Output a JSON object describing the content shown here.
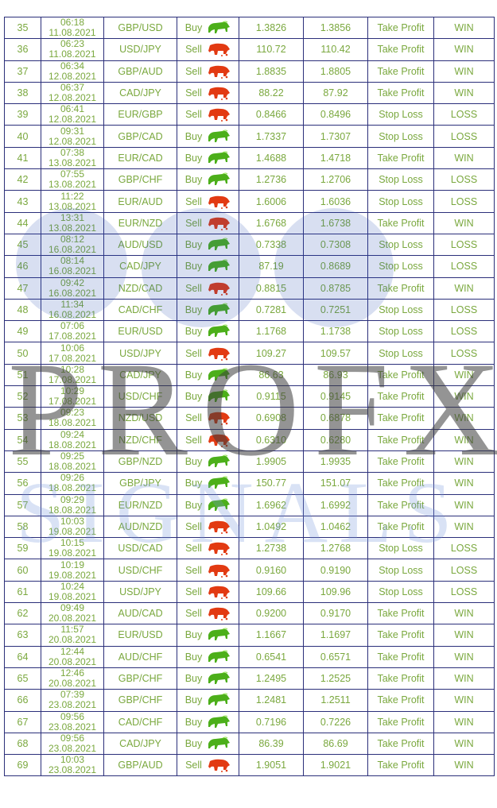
{
  "colors": {
    "text": "#7aa83e",
    "border": "#2b2f7a",
    "buy_icon": "#4caf1a",
    "sell_icon": "#e23a12"
  },
  "watermark": {
    "line1": "PROFX",
    "line2": "SIGNALS"
  },
  "rows": [
    {
      "n": "35",
      "time": "06:18",
      "date": "11.08.2021",
      "pair": "GBP/USD",
      "dir": "Buy",
      "icon": "bull-icon",
      "open": "1.3826",
      "close": "1.3856",
      "exit": "Take Profit",
      "result": "WIN"
    },
    {
      "n": "36",
      "time": "06:23",
      "date": "11.08.2021",
      "pair": "USD/JPY",
      "dir": "Sell",
      "icon": "bear-icon",
      "open": "110.72",
      "close": "110.42",
      "exit": "Take Profit",
      "result": "WIN"
    },
    {
      "n": "37",
      "time": "06:34",
      "date": "12.08.2021",
      "pair": "GBP/AUD",
      "dir": "Sell",
      "icon": "bear-icon",
      "open": "1.8835",
      "close": "1.8805",
      "exit": "Take Profit",
      "result": "WIN"
    },
    {
      "n": "38",
      "time": "06:37",
      "date": "12.08.2021",
      "pair": "CAD/JPY",
      "dir": "Sell",
      "icon": "bear-icon",
      "open": "88.22",
      "close": "87.92",
      "exit": "Take Profit",
      "result": "WIN"
    },
    {
      "n": "39",
      "time": "06:41",
      "date": "12.08.2021",
      "pair": "EUR/GBP",
      "dir": "Sell",
      "icon": "bear-icon",
      "open": "0.8466",
      "close": "0.8496",
      "exit": "Stop Loss",
      "result": "LOSS"
    },
    {
      "n": "40",
      "time": "09:31",
      "date": "12.08.2021",
      "pair": "GBP/CAD",
      "dir": "Buy",
      "icon": "bull-icon",
      "open": "1.7337",
      "close": "1.7307",
      "exit": "Stop Loss",
      "result": "LOSS"
    },
    {
      "n": "41",
      "time": "07:38",
      "date": "13.08.2021",
      "pair": "EUR/CAD",
      "dir": "Buy",
      "icon": "bull-icon",
      "open": "1.4688",
      "close": "1.4718",
      "exit": "Take Profit",
      "result": "WIN"
    },
    {
      "n": "42",
      "time": "07:55",
      "date": "13.08.2021",
      "pair": "GBP/CHF",
      "dir": "Buy",
      "icon": "bull-icon",
      "open": "1.2736",
      "close": "1.2706",
      "exit": "Stop Loss",
      "result": "LOSS"
    },
    {
      "n": "43",
      "time": "11:22",
      "date": "13.08.2021",
      "pair": "EUR/AUD",
      "dir": "Sell",
      "icon": "bear-icon",
      "open": "1.6006",
      "close": "1.6036",
      "exit": "Stop Loss",
      "result": "LOSS"
    },
    {
      "n": "44",
      "time": "13:31",
      "date": "13.08.2021",
      "pair": "EUR/NZD",
      "dir": "Sell",
      "icon": "bear-icon",
      "open": "1.6768",
      "close": "1.6738",
      "exit": "Take Profit",
      "result": "WIN"
    },
    {
      "n": "45",
      "time": "08:12",
      "date": "16.08.2021",
      "pair": "AUD/USD",
      "dir": "Buy",
      "icon": "bull-icon",
      "open": "0.7338",
      "close": "0.7308",
      "exit": "Stop Loss",
      "result": "LOSS"
    },
    {
      "n": "46",
      "time": "08:14",
      "date": "16.08.2021",
      "pair": "CAD/JPY",
      "dir": "Buy",
      "icon": "bull-icon",
      "open": "87.19",
      "close": "0.8689",
      "exit": "Stop Loss",
      "result": "LOSS"
    },
    {
      "n": "47",
      "time": "09:42",
      "date": "16.08.2021",
      "pair": "NZD/CAD",
      "dir": "Sell",
      "icon": "bear-icon",
      "open": "0.8815",
      "close": "0.8785",
      "exit": "Take Profit",
      "result": "WIN"
    },
    {
      "n": "48",
      "time": "11:34",
      "date": "16.08.2021",
      "pair": "CAD/CHF",
      "dir": "Buy",
      "icon": "bull-icon",
      "open": "0.7281",
      "close": "0.7251",
      "exit": "Stop Loss",
      "result": "LOSS"
    },
    {
      "n": "49",
      "time": "07:06",
      "date": "17.08.2021",
      "pair": "EUR/USD",
      "dir": "Buy",
      "icon": "bull-icon",
      "open": "1.1768",
      "close": "1.1738",
      "exit": "Stop Loss",
      "result": "LOSS"
    },
    {
      "n": "50",
      "time": "10:06",
      "date": "17.08.2021",
      "pair": "USD/JPY",
      "dir": "Sell",
      "icon": "bear-icon",
      "open": "109.27",
      "close": "109.57",
      "exit": "Stop Loss",
      "result": "LOSS"
    },
    {
      "n": "51",
      "time": "10:28",
      "date": "17.08.2021",
      "pair": "CAD/JPY",
      "dir": "Buy",
      "icon": "bull-icon",
      "open": "86.63",
      "close": "86.93",
      "exit": "Take Profit",
      "result": "WIN"
    },
    {
      "n": "52",
      "time": "10:29",
      "date": "17.08.2021",
      "pair": "USD/CHF",
      "dir": "Buy",
      "icon": "bull-icon",
      "open": "0.9115",
      "close": "0.9145",
      "exit": "Take Profit",
      "result": "WIN"
    },
    {
      "n": "53",
      "time": "09:23",
      "date": "18.08.2021",
      "pair": "NZD/USD",
      "dir": "Sell",
      "icon": "bear-icon",
      "open": "0.6908",
      "close": "0.6878",
      "exit": "Take Profit",
      "result": "WIN"
    },
    {
      "n": "54",
      "time": "09:24",
      "date": "18.08.2021",
      "pair": "NZD/CHF",
      "dir": "Sell",
      "icon": "bear-icon",
      "open": "0.6310",
      "close": "0.6280",
      "exit": "Take Profit",
      "result": "WIN"
    },
    {
      "n": "55",
      "time": "09:25",
      "date": "18.08.2021",
      "pair": "GBP/NZD",
      "dir": "Buy",
      "icon": "bull-icon",
      "open": "1.9905",
      "close": "1.9935",
      "exit": "Take Profit",
      "result": "WIN"
    },
    {
      "n": "56",
      "time": "09:26",
      "date": "18.08.2021",
      "pair": "GBP/JPY",
      "dir": "Buy",
      "icon": "bull-icon",
      "open": "150.77",
      "close": "151.07",
      "exit": "Take Profit",
      "result": "WIN"
    },
    {
      "n": "57",
      "time": "09:29",
      "date": "18.08.2021",
      "pair": "EUR/NZD",
      "dir": "Buy",
      "icon": "bull-icon",
      "open": "1.6962",
      "close": "1.6992",
      "exit": "Take Profit",
      "result": "WIN"
    },
    {
      "n": "58",
      "time": "10:03",
      "date": "19.08.2021",
      "pair": "AUD/NZD",
      "dir": "Sell",
      "icon": "bear-icon",
      "open": "1.0492",
      "close": "1.0462",
      "exit": "Take Profit",
      "result": "WIN"
    },
    {
      "n": "59",
      "time": "10:15",
      "date": "19.08.2021",
      "pair": "USD/CAD",
      "dir": "Sell",
      "icon": "bear-icon",
      "open": "1.2738",
      "close": "1.2768",
      "exit": "Stop Loss",
      "result": "LOSS"
    },
    {
      "n": "60",
      "time": "10:19",
      "date": "19.08.2021",
      "pair": "USD/CHF",
      "dir": "Sell",
      "icon": "bear-icon",
      "open": "0.9160",
      "close": "0.9190",
      "exit": "Stop Loss",
      "result": "LOSS"
    },
    {
      "n": "61",
      "time": "10:24",
      "date": "19.08.2021",
      "pair": "USD/JPY",
      "dir": "Sell",
      "icon": "bear-icon",
      "open": "109.66",
      "close": "109.96",
      "exit": "Stop Loss",
      "result": "LOSS"
    },
    {
      "n": "62",
      "time": "09:49",
      "date": "20.08.2021",
      "pair": "AUD/CAD",
      "dir": "Sell",
      "icon": "bear-icon",
      "open": "0.9200",
      "close": "0.9170",
      "exit": "Take Profit",
      "result": "WIN"
    },
    {
      "n": "63",
      "time": "11:57",
      "date": "20.08.2021",
      "pair": "EUR/USD",
      "dir": "Buy",
      "icon": "bull-icon",
      "open": "1.1667",
      "close": "1.1697",
      "exit": "Take Profit",
      "result": "WIN"
    },
    {
      "n": "64",
      "time": "12:44",
      "date": "20.08.2021",
      "pair": "AUD/CHF",
      "dir": "Buy",
      "icon": "bull-icon",
      "open": "0.6541",
      "close": "0.6571",
      "exit": "Take Profit",
      "result": "WIN"
    },
    {
      "n": "65",
      "time": "12:46",
      "date": "20.08.2021",
      "pair": "GBP/CHF",
      "dir": "Buy",
      "icon": "bull-icon",
      "open": "1.2495",
      "close": "1.2525",
      "exit": "Take Profit",
      "result": "WIN"
    },
    {
      "n": "66",
      "time": "07:39",
      "date": "23.08.2021",
      "pair": "GBP/CHF",
      "dir": "Buy",
      "icon": "bull-icon",
      "open": "1.2481",
      "close": "1.2511",
      "exit": "Take Profit",
      "result": "WIN"
    },
    {
      "n": "67",
      "time": "09:56",
      "date": "23.08.2021",
      "pair": "CAD/CHF",
      "dir": "Buy",
      "icon": "bull-icon",
      "open": "0.7196",
      "close": "0.7226",
      "exit": "Take Profit",
      "result": "WIN"
    },
    {
      "n": "68",
      "time": "09:56",
      "date": "23.08.2021",
      "pair": "CAD/JPY",
      "dir": "Buy",
      "icon": "bull-icon",
      "open": "86.39",
      "close": "86.69",
      "exit": "Take Profit",
      "result": "WIN"
    },
    {
      "n": "69",
      "time": "10:03",
      "date": "23.08.2021",
      "pair": "GBP/AUD",
      "dir": "Sell",
      "icon": "bear-icon",
      "open": "1.9051",
      "close": "1.9021",
      "exit": "Take Profit",
      "result": "WIN"
    }
  ]
}
